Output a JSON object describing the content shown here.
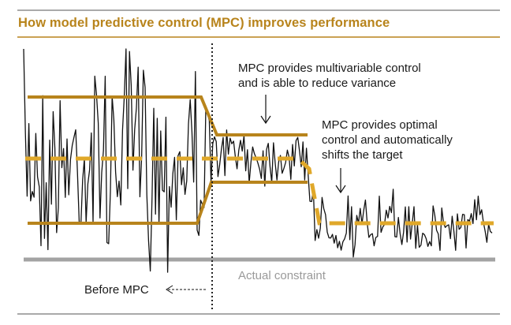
{
  "title": "How model predictive control (MPC) improves performance",
  "annotations": {
    "multivariable_line1": "MPC provides multivariable control",
    "multivariable_line2": "and is able to reduce variance",
    "optimal_line1": "MPC provides optimal",
    "optimal_line2": "control and automatically",
    "optimal_line3": "shifts the target",
    "before_mpc": "Before MPC",
    "actual_constraint": "Actual constraint"
  },
  "colors": {
    "gold": "#b8841c",
    "trace": "#111111",
    "constraint": "#a3a3a3",
    "rule": "#444444"
  }
}
